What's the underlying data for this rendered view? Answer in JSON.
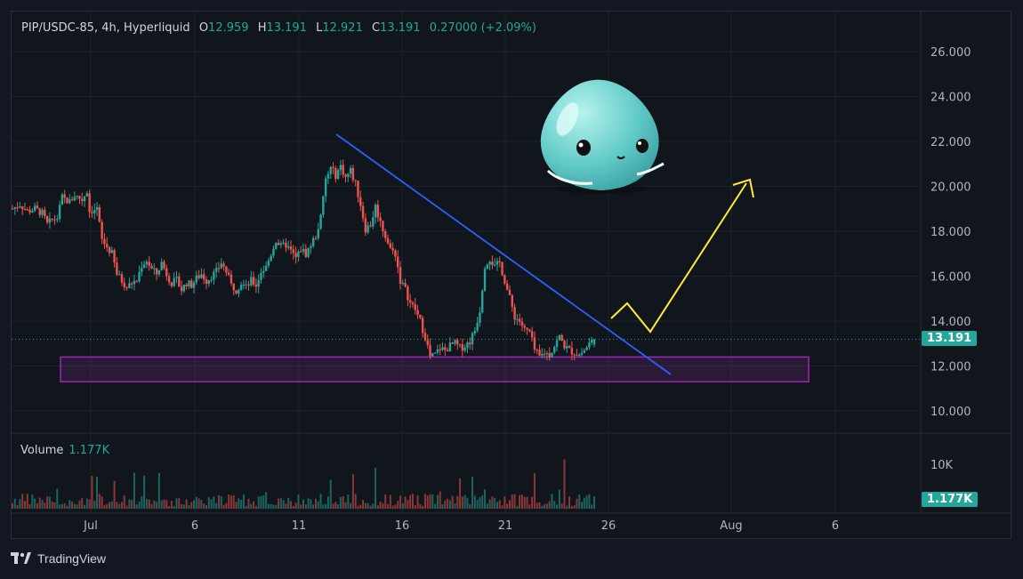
{
  "header": {
    "symbol": "PIP/USDC-85, 4h, Hyperliquid",
    "o_label": "O",
    "o": "12.959",
    "h_label": "H",
    "h": "13.191",
    "l_label": "L",
    "l": "12.921",
    "c_label": "C",
    "c": "13.191",
    "change": "0.27000 (+2.09%)"
  },
  "volume_panel": {
    "label": "Volume",
    "value": "1.177K"
  },
  "price_tag": "13.191",
  "volume_tag": "1.177K",
  "branding": "TradingView",
  "colors": {
    "up": "#26a69a",
    "down": "#ef5350",
    "trendline": "#2962ff",
    "zone": "#9c27b0",
    "arrow": "#ffeb3b"
  },
  "chart_data": {
    "type": "candlestick",
    "timeframe": "4h",
    "price_axis": {
      "ticks": [
        "26.000",
        "24.000",
        "22.000",
        "20.000",
        "18.000",
        "16.000",
        "14.000",
        "12.000",
        "10.000"
      ],
      "range": [
        9.0,
        27.2
      ]
    },
    "volume_axis": {
      "ticks": [
        "10K"
      ]
    },
    "time_axis": {
      "ticks": [
        "Jul",
        "6",
        "11",
        "16",
        "21",
        "26",
        "Aug",
        "6"
      ]
    },
    "last_price": 13.191,
    "close_path": [
      [
        0,
        19.0
      ],
      [
        3,
        19.2
      ],
      [
        6,
        18.9
      ],
      [
        9,
        19.0
      ],
      [
        12,
        18.8
      ],
      [
        14,
        18.3
      ],
      [
        16,
        18.5
      ],
      [
        18,
        18.6
      ],
      [
        20,
        19.5
      ],
      [
        23,
        19.3
      ],
      [
        25,
        19.6
      ],
      [
        28,
        19.4
      ],
      [
        30,
        19.8
      ],
      [
        31,
        18.9
      ],
      [
        34,
        19.0
      ],
      [
        36,
        17.6
      ],
      [
        38,
        17.3
      ],
      [
        40,
        17.0
      ],
      [
        42,
        16.1
      ],
      [
        44,
        15.8
      ],
      [
        46,
        15.5
      ],
      [
        48,
        15.7
      ],
      [
        50,
        15.8
      ],
      [
        52,
        16.5
      ],
      [
        54,
        16.7
      ],
      [
        56,
        16.3
      ],
      [
        58,
        16.1
      ],
      [
        60,
        16.6
      ],
      [
        62,
        16.1
      ],
      [
        64,
        15.7
      ],
      [
        66,
        15.8
      ],
      [
        68,
        15.4
      ],
      [
        70,
        15.7
      ],
      [
        72,
        15.6
      ],
      [
        74,
        15.9
      ],
      [
        76,
        16.1
      ],
      [
        78,
        15.8
      ],
      [
        80,
        16.0
      ],
      [
        82,
        16.2
      ],
      [
        84,
        16.6
      ],
      [
        86,
        16.2
      ],
      [
        88,
        15.6
      ],
      [
        90,
        15.4
      ],
      [
        92,
        15.7
      ],
      [
        94,
        15.5
      ],
      [
        96,
        15.8
      ],
      [
        98,
        15.6
      ],
      [
        100,
        16.2
      ],
      [
        102,
        16.4
      ],
      [
        104,
        17.0
      ],
      [
        106,
        17.6
      ],
      [
        108,
        17.3
      ],
      [
        110,
        17.4
      ],
      [
        112,
        17.1
      ],
      [
        114,
        16.8
      ],
      [
        116,
        17.2
      ],
      [
        118,
        17.0
      ],
      [
        120,
        17.4
      ],
      [
        122,
        17.8
      ],
      [
        124,
        18.6
      ],
      [
        126,
        20.3
      ],
      [
        128,
        20.8
      ],
      [
        130,
        20.5
      ],
      [
        132,
        20.9
      ],
      [
        134,
        20.4
      ],
      [
        136,
        20.7
      ],
      [
        138,
        20.1
      ],
      [
        140,
        19.2
      ],
      [
        142,
        18.1
      ],
      [
        144,
        18.3
      ],
      [
        146,
        19.1
      ],
      [
        148,
        18.4
      ],
      [
        150,
        17.8
      ],
      [
        152,
        17.2
      ],
      [
        154,
        17.0
      ],
      [
        156,
        15.8
      ],
      [
        158,
        15.4
      ],
      [
        160,
        14.8
      ],
      [
        162,
        14.5
      ],
      [
        164,
        14.0
      ],
      [
        166,
        13.3
      ],
      [
        168,
        12.4
      ],
      [
        170,
        12.5
      ],
      [
        172,
        12.8
      ],
      [
        174,
        12.7
      ],
      [
        176,
        12.9
      ],
      [
        178,
        13.0
      ],
      [
        180,
        12.8
      ],
      [
        182,
        12.9
      ],
      [
        184,
        13.1
      ],
      [
        186,
        13.6
      ],
      [
        188,
        14.5
      ],
      [
        190,
        16.5
      ],
      [
        192,
        16.8
      ],
      [
        194,
        16.4
      ],
      [
        196,
        16.6
      ],
      [
        198,
        15.8
      ],
      [
        200,
        15.0
      ],
      [
        202,
        14.2
      ],
      [
        204,
        14.0
      ],
      [
        206,
        13.6
      ],
      [
        208,
        13.5
      ],
      [
        210,
        12.7
      ],
      [
        212,
        12.4
      ],
      [
        214,
        12.6
      ],
      [
        216,
        12.5
      ],
      [
        218,
        12.9
      ],
      [
        220,
        13.3
      ],
      [
        222,
        12.9
      ],
      [
        224,
        12.7
      ],
      [
        226,
        12.6
      ],
      [
        228,
        12.5
      ],
      [
        230,
        12.7
      ],
      [
        232,
        13.0
      ],
      [
        234,
        13.191
      ]
    ],
    "annotations": [
      {
        "type": "trendline",
        "label": "",
        "from": [
          "2025-07-13",
          22.3
        ],
        "to": [
          "2025-07-29",
          11.6
        ]
      },
      {
        "type": "support-zone",
        "label": "",
        "price_range": [
          11.3,
          12.4
        ]
      },
      {
        "type": "projection-arrow",
        "label": "",
        "points": [
          [
            14.1
          ],
          [
            14.8
          ],
          [
            13.5
          ],
          [
            20.3
          ]
        ]
      }
    ],
    "mascot": "teal-blob-mascot"
  }
}
